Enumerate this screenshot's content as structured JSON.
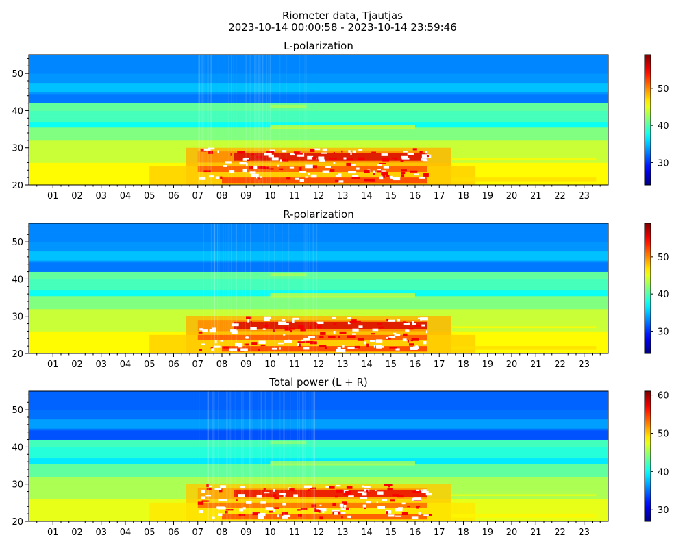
{
  "figure": {
    "title_line1": "Riometer data, Tjautjas",
    "title_line2": "2023-10-14 00:00:58 - 2023-10-14 23:59:46"
  },
  "chart_data": [
    {
      "type": "heatmap",
      "title": "L-polarization",
      "xlabel": "",
      "ylabel": "",
      "x_tick_labels": [
        "01",
        "02",
        "03",
        "04",
        "05",
        "06",
        "07",
        "08",
        "09",
        "10",
        "11",
        "12",
        "13",
        "14",
        "15",
        "16",
        "17",
        "18",
        "19",
        "20",
        "21",
        "22",
        "23"
      ],
      "x_range_hours": [
        0,
        24
      ],
      "ylim": [
        20,
        55
      ],
      "y_ticks": [
        20,
        30,
        40,
        50
      ],
      "colorbar": {
        "colormap": "jet",
        "range": [
          24,
          59
        ],
        "ticks": [
          30,
          40,
          50
        ]
      },
      "saturated_band_peak_value": 59
    },
    {
      "type": "heatmap",
      "title": "R-polarization",
      "xlabel": "",
      "ylabel": "",
      "x_tick_labels": [
        "01",
        "02",
        "03",
        "04",
        "05",
        "06",
        "07",
        "08",
        "09",
        "10",
        "11",
        "12",
        "13",
        "14",
        "15",
        "16",
        "17",
        "18",
        "19",
        "20",
        "21",
        "22",
        "23"
      ],
      "x_range_hours": [
        0,
        24
      ],
      "ylim": [
        20,
        55
      ],
      "y_ticks": [
        20,
        30,
        40,
        50
      ],
      "colorbar": {
        "colormap": "jet",
        "range": [
          24,
          59
        ],
        "ticks": [
          30,
          40,
          50
        ]
      },
      "saturated_band_peak_value": 59
    },
    {
      "type": "heatmap",
      "title": "Total power (L + R)",
      "xlabel": "",
      "ylabel": "",
      "x_tick_labels": [
        "01",
        "02",
        "03",
        "04",
        "05",
        "06",
        "07",
        "08",
        "09",
        "10",
        "11",
        "12",
        "13",
        "14",
        "15",
        "16",
        "17",
        "18",
        "19",
        "20",
        "21",
        "22",
        "23"
      ],
      "x_range_hours": [
        0,
        24
      ],
      "ylim": [
        20,
        55
      ],
      "y_ticks": [
        20,
        30,
        40,
        50
      ],
      "colorbar": {
        "colormap": "jet",
        "range": [
          27,
          61
        ],
        "ticks": [
          30,
          40,
          50,
          60
        ]
      },
      "saturated_band_peak_value": 61
    }
  ]
}
